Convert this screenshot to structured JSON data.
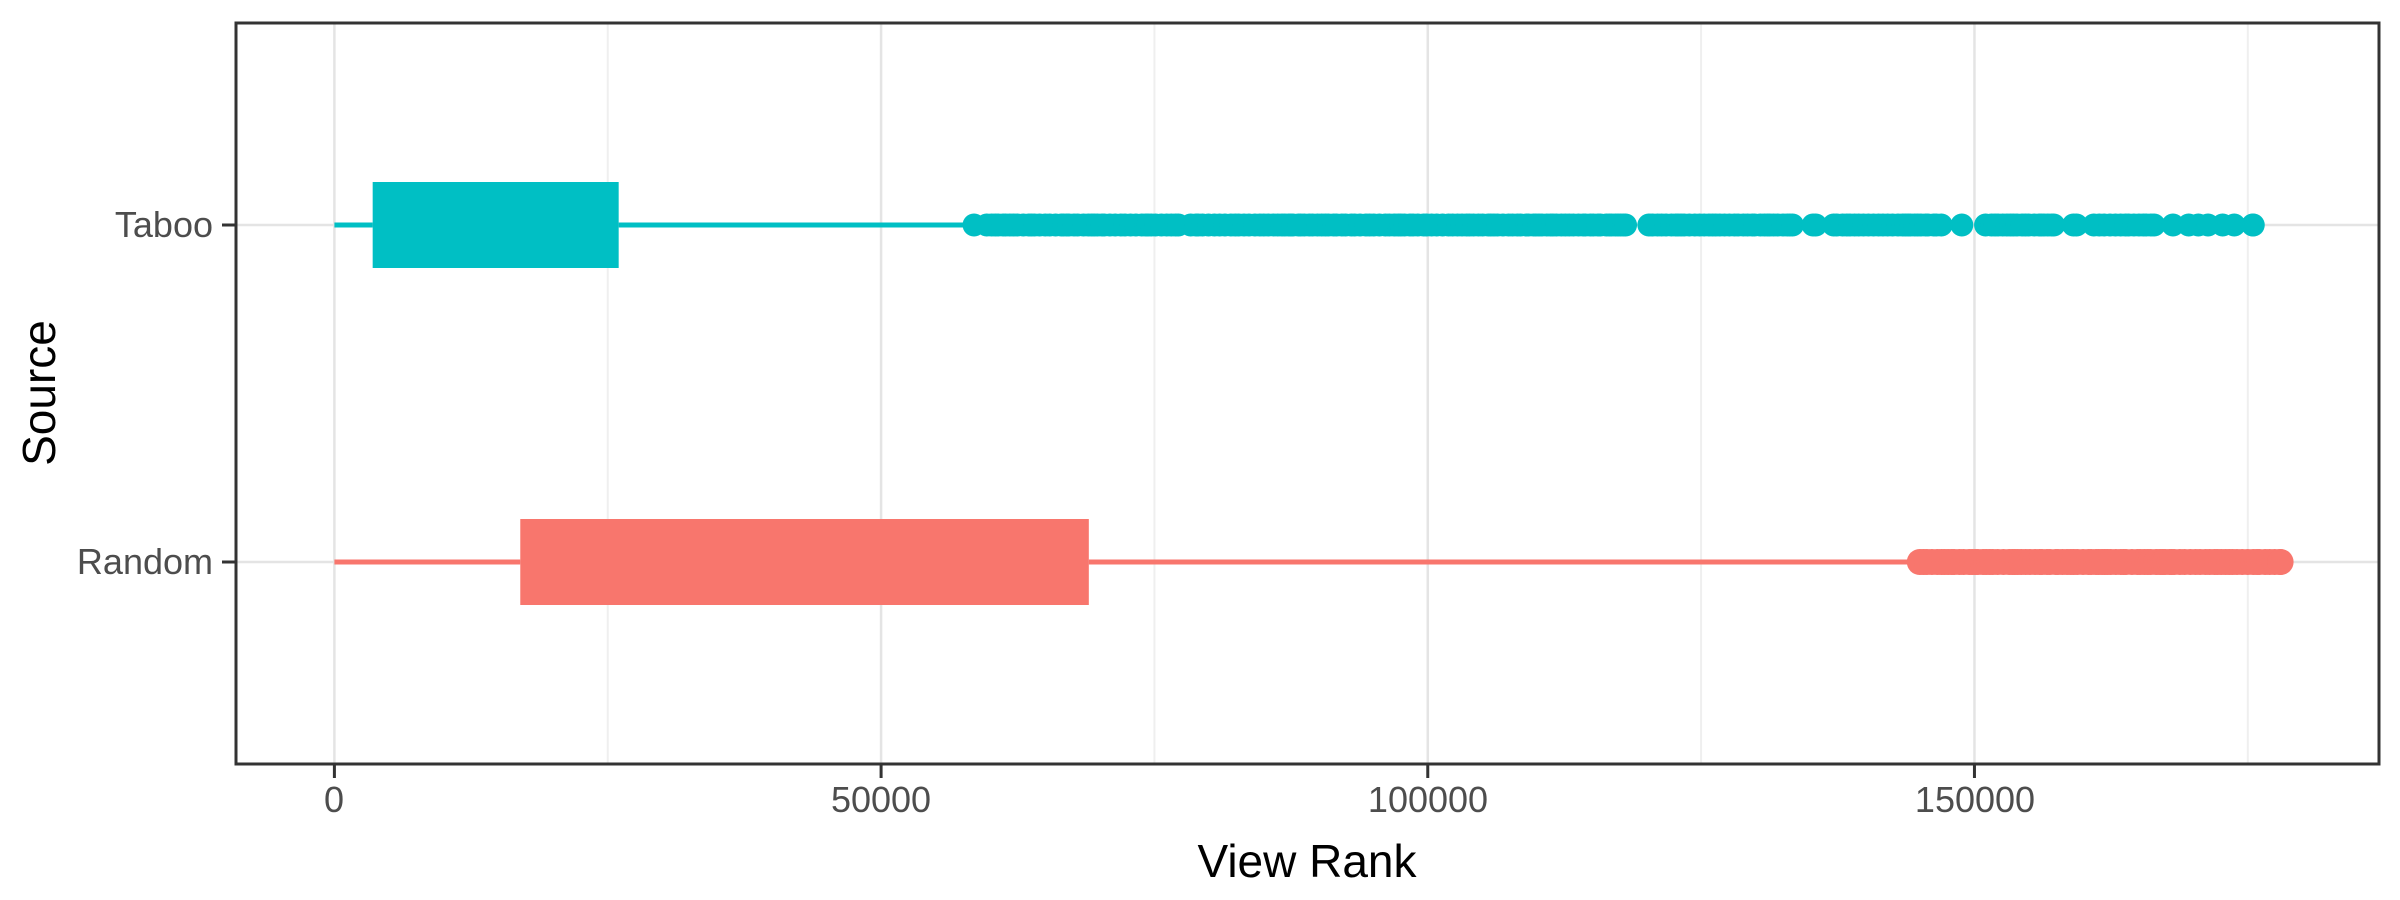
{
  "figure": {
    "background": "#FFFFFF"
  },
  "chart_data": {
    "type": "boxplot",
    "orientation": "horizontal",
    "title": "",
    "xlabel": "View Rank",
    "ylabel": "Source",
    "categories": [
      "Taboo",
      "Random"
    ],
    "x_tick_labels": [
      "0",
      "50000",
      "100000",
      "150000"
    ],
    "x_ticks": [
      0,
      50000,
      100000,
      150000
    ],
    "x_minor_ticks": [
      25000,
      75000,
      125000,
      175000
    ],
    "xlim": [
      -9000,
      187000
    ],
    "grid": true,
    "legend": "none",
    "series": [
      {
        "name": "Taboo",
        "color": "#00BFC4",
        "whisker_min": 0,
        "q1": 3500,
        "q3": 26000,
        "whisker_max": 57500,
        "median_line_visible": false,
        "outliers": {
          "style": "dense_points",
          "from": 58500,
          "to": 175500,
          "point_radius": 11.5
        }
      },
      {
        "name": "Random",
        "color": "#F8766D",
        "whisker_min": 0,
        "q1": 17000,
        "q3": 69000,
        "whisker_max": 144500,
        "median_line_visible": false,
        "outliers": {
          "style": "solid_band",
          "from": 145000,
          "to": 178000,
          "point_radius": 13
        }
      }
    ],
    "theme": {
      "panel_border_color": "#333333",
      "grid_major_color": "#E4E4E4",
      "grid_minor_color": "#EFEFEF",
      "tick_color": "#333333",
      "axis_text_color": "#4D4D4D",
      "axis_title_color": "#000000"
    }
  }
}
